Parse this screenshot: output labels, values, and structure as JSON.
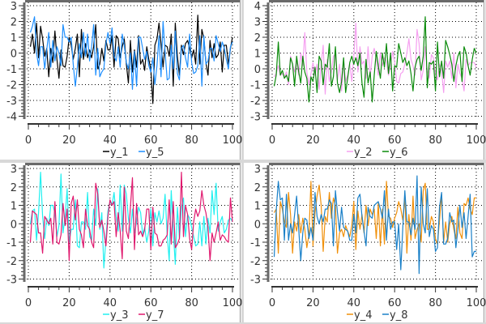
{
  "chart_data": [
    {
      "type": "line",
      "xlim": [
        0,
        100
      ],
      "ylim": [
        -4,
        3
      ],
      "xticks": [
        "0",
        "20",
        "40",
        "60",
        "80",
        "100"
      ],
      "yticks": [
        "3",
        "2",
        "1",
        "0",
        "-1",
        "-2",
        "-3",
        "-4"
      ],
      "grid": true,
      "legend_position": "bottom-center",
      "series": [
        {
          "name": "y_1",
          "color": "#000000",
          "values": [
            0.4,
            1.2,
            0.0,
            1.9,
            -0.3,
            1.7,
            0.9,
            -0.2,
            0.3,
            -1.5,
            0.3,
            -0.6,
            1.4,
            -0.4,
            -1.6,
            0.2,
            -0.8,
            -0.9,
            -0.2,
            1.0,
            0.5,
            -0.4,
            0.3,
            1.2,
            -1.5,
            1.5,
            -0.4,
            0.6,
            -0.3,
            0.2,
            -0.3,
            0.4,
            1.8,
            -1.0,
            -0.7,
            0.3,
            -0.5,
            0.8,
            0.2,
            0.2,
            1.1,
            -0.9,
            1.1,
            0.9,
            -0.3,
            0.4,
            0.9,
            -0.7,
            -1.9,
            0.8,
            -1.2,
            0.2,
            -0.9,
            1.1,
            -0.7,
            -0.4,
            -1.1,
            0.4,
            -0.4,
            -1.0,
            -3.2,
            0.5,
            0.9,
            1.9,
            0.6,
            -0.9,
            0.5,
            0.4,
            -0.2,
            1.2,
            -2.1,
            1.9,
            -0.2,
            -1.4,
            0.5,
            -0.1,
            0.6,
            0.8,
            0.3,
            -0.3,
            0.2,
            -0.7,
            2.4,
            -0.7,
            1.5,
            0.9,
            -0.6,
            -1.4,
            0.8,
            -0.3,
            0.6,
            -0.3,
            -0.1,
            0.7,
            -1.2,
            0.5,
            0.5,
            -0.7,
            0.3,
            1.0
          ]
        },
        {
          "name": "y_5",
          "color": "#1e8fff",
          "values": [
            1.3,
            1.7,
            2.3,
            0.0,
            -0.8,
            0.4,
            0.4,
            -1.0,
            0.2,
            1.3,
            -0.9,
            0.8,
            -0.5,
            0.4,
            0.0,
            -0.8,
            1.8,
            1.0,
            1.0,
            0.7,
            1.0,
            -0.7,
            -2.1,
            -0.9,
            0.6,
            -0.3,
            1.3,
            -0.2,
            1.2,
            -0.5,
            0.4,
            1.8,
            -1.4,
            0.3,
            -1.5,
            -1.2,
            -1.0,
            0.6,
            1.3,
            0.6,
            1.6,
            -0.2,
            -0.5,
            0.4,
            -0.9,
            1.2,
            0.5,
            -0.6,
            -1.0,
            0.0,
            -2.3,
            0.1,
            -2.1,
            1.0,
            1.0,
            0.3,
            -0.4,
            0.1,
            -0.8,
            -1.2,
            -0.3,
            -2.0,
            -0.8,
            1.1,
            -1.5,
            2.0,
            0.1,
            -1.7,
            -1.6,
            0.5,
            -1.0,
            1.4,
            -1.3,
            -1.7,
            0.3,
            0.5,
            -0.3,
            -0.9,
            1.2,
            -0.6,
            -1.3,
            -1.2,
            -0.8,
            1.1,
            -2.1,
            1.1,
            -0.7,
            -0.5,
            0.3,
            0.3,
            -0.5,
            1.1,
            0.6,
            0.1,
            0.7,
            0.3,
            -0.4,
            -1.0,
            0.4,
            0.7
          ]
        }
      ]
    },
    {
      "type": "line",
      "xlim": [
        0,
        100
      ],
      "ylim": [
        -3,
        4
      ],
      "xticks": [
        "0",
        "20",
        "40",
        "60",
        "80",
        "100"
      ],
      "yticks": [
        "4",
        "3",
        "2",
        "1",
        "0",
        "-1",
        "-2",
        "-3"
      ],
      "grid": true,
      "legend_position": "bottom-center",
      "series": [
        {
          "name": "y_2",
          "color": "#f5a0f0",
          "values": [
            -0.5,
            -0.3,
            0.2,
            -0.4,
            -0.3,
            -0.5,
            -0.2,
            -1.0,
            0.8,
            0.3,
            -0.2,
            0.5,
            -0.4,
            1.0,
            0.2,
            2.3,
            -0.2,
            -1.0,
            -0.3,
            0.4,
            -0.4,
            0.3,
            -1.3,
            0.3,
            1.5,
            -1.6,
            0.6,
            -0.8,
            -0.2,
            0.8,
            0.9,
            -0.7,
            0.3,
            -1.4,
            0.5,
            -0.8,
            -0.4,
            0.3,
            -0.8,
            0.8,
            2.9,
            -0.2,
            1.4,
            0.3,
            0.5,
            -0.6,
            1.4,
            -0.5,
            0.8,
            1.3,
            0.6,
            -0.4,
            1.0,
            0.2,
            0.7,
            0.5,
            -0.4,
            0.2,
            1.1,
            0.4,
            -0.8,
            -0.9,
            -0.3,
            -0.2,
            0.3,
            1.0,
            1.9,
            0.6,
            0.2,
            -0.4,
            2.5,
            1.6,
            -0.7,
            -0.1,
            1.4,
            -0.1,
            -0.6,
            0.9,
            0.7,
            -0.3,
            -0.7,
            0.3,
            -0.1,
            -1.5,
            0.5,
            0.1,
            0.5,
            -0.6,
            1.0,
            -1.2,
            0.3,
            -0.3,
            -0.6,
            -1.4,
            0.6,
            0.2,
            0.4,
            0.4,
            0.4,
            0.1
          ]
        },
        {
          "name": "y_6",
          "color": "#0a8a0a",
          "values": [
            -1.1,
            -0.4,
            1.7,
            -0.4,
            -0.1,
            -0.6,
            -0.4,
            -0.8,
            0.7,
            0.3,
            -1.1,
            0.8,
            -0.2,
            -0.9,
            0.8,
            -0.2,
            -0.6,
            -2.1,
            -0.5,
            -0.8,
            0.1,
            -1.5,
            0.8,
            0.5,
            -1.0,
            0.3,
            0.1,
            1.6,
            -1.1,
            -0.5,
            1.4,
            -0.9,
            -1.5,
            -0.8,
            0.7,
            -1.5,
            -0.6,
            0.4,
            0.8,
            0.3,
            0.7,
            0.2,
            1.0,
            -0.9,
            -1.8,
            0.6,
            -0.9,
            -0.2,
            -2.1,
            -0.4,
            1.1,
            0.2,
            -0.6,
            1.0,
            0.1,
            1.6,
            -0.3,
            1.0,
            -1.4,
            0.2,
            0.1,
            1.6,
            1.0,
            0.4,
            0.7,
            0.2,
            0.5,
            -0.3,
            -1.4,
            0.1,
            0.6,
            0.8,
            -0.1,
            0.8,
            3.3,
            -1.2,
            0.4,
            0.3,
            0.5,
            -1.4,
            1.7,
            -0.5,
            0.5,
            -0.6,
            1.8,
            1.4,
            0.9,
            0.3,
            -0.8,
            0.2,
            0.8,
            1.1,
            -0.8,
            1.4,
            1.0,
            0.2,
            -0.4,
            0.6,
            1.3,
            1.0
          ]
        }
      ]
    },
    {
      "type": "line",
      "xlim": [
        0,
        100
      ],
      "ylim": [
        -3,
        3
      ],
      "xticks": [
        "0",
        "20",
        "40",
        "60",
        "80",
        "100"
      ],
      "yticks": [
        "3",
        "2",
        "1",
        "0",
        "-1",
        "-2",
        "-3"
      ],
      "grid": true,
      "legend_position": "bottom-center",
      "series": [
        {
          "name": "y_3",
          "color": "#22f0f0",
          "values": [
            0.0,
            0.7,
            0.8,
            -0.9,
            0.6,
            2.8,
            0.4,
            -0.8,
            0.3,
            -0.1,
            1.0,
            1.0,
            0.6,
            -0.7,
            -0.1,
            2.7,
            -0.5,
            0.4,
            1.9,
            -1.0,
            -0.3,
            -0.3,
            1.3,
            -1.2,
            -1.3,
            0.1,
            0.1,
            -0.3,
            1.7,
            -0.7,
            -0.9,
            0.8,
            -0.1,
            1.9,
            -0.3,
            0.6,
            -2.4,
            -0.8,
            0.7,
            1.2,
            1.0,
            1.7,
            0.4,
            -0.4,
            2.1,
            -0.4,
            2.1,
            1.6,
            0.3,
            -0.5,
            0.8,
            -0.5,
            0.1,
            0.9,
            0.6,
            -0.6,
            -0.2,
            -1.0,
            -0.4,
            0.8,
            -1.2,
            0.6,
            0.1,
            0.7,
            0.0,
            0.3,
            1.6,
            -0.6,
            -2.0,
            1.8,
            -0.4,
            -2.2,
            0.9,
            -0.8,
            0.9,
            1.4,
            -0.7,
            0.5,
            0.3,
            -0.2,
            -0.7,
            -1.2,
            -1.1,
            0.1,
            -1.2,
            0.4,
            -1.1,
            0.3,
            -0.5,
            1.8,
            0.5,
            2.2,
            -0.4,
            0.1,
            0.4,
            -0.5,
            -0.3,
            0.2,
            0.3,
            0.1
          ]
        },
        {
          "name": "y_7",
          "color": "#e0186e",
          "values": [
            -1.0,
            0.7,
            0.6,
            0.5,
            -0.5,
            -0.5,
            -1.6,
            0.4,
            0.2,
            0.0,
            0.3,
            -1.1,
            1.2,
            -1.0,
            -1.1,
            -0.6,
            1.1,
            -0.1,
            0.8,
            -2.0,
            1.1,
            1.5,
            0.2,
            1.3,
            -0.3,
            -0.6,
            -1.3,
            0.8,
            -0.1,
            -0.3,
            -1.0,
            -1.3,
            2.2,
            1.6,
            -0.2,
            0.2,
            -0.4,
            -1.2,
            0.4,
            1.3,
            1.0,
            1.2,
            -0.7,
            0.6,
            -0.4,
            -1.9,
            2.0,
            -0.4,
            -0.8,
            0.9,
            2.5,
            -1.4,
            1.1,
            -0.6,
            -0.4,
            -0.7,
            -0.3,
            0.8,
            0.8,
            -1.4,
            0.9,
            -0.5,
            -0.6,
            -1.2,
            -1.2,
            -0.9,
            -0.8,
            -0.6,
            1.3,
            -1.1,
            1.2,
            -1.3,
            -1.1,
            -0.8,
            2.8,
            -0.7,
            1.0,
            0.5,
            -0.8,
            -1.4,
            0.1,
            0.8,
            0.4,
            0.7,
            1.8,
            1.0,
            0.6,
            -0.2,
            -2.0,
            -0.5,
            -1.0,
            -0.5,
            0.1,
            -0.9,
            -0.6,
            -0.7,
            -0.9,
            -1.0,
            1.4,
            0.1
          ]
        }
      ]
    },
    {
      "type": "line",
      "xlim": [
        0,
        100
      ],
      "ylim": [
        -3,
        3
      ],
      "xticks": [
        "0",
        "20",
        "40",
        "60",
        "80",
        "100"
      ],
      "yticks": [
        "3",
        "2",
        "1",
        "0",
        "-1",
        "-2",
        "-3"
      ],
      "grid": true,
      "legend_position": "bottom-center",
      "series": [
        {
          "name": "y_4",
          "color": "#f0900a",
          "values": [
            0.6,
            0.8,
            -1.6,
            1.2,
            0.8,
            0.1,
            -0.2,
            1.7,
            0.5,
            -1.6,
            0.1,
            -0.4,
            0.5,
            -0.5,
            0.3,
            -0.3,
            -1.3,
            -0.6,
            2.3,
            -1.2,
            0.6,
            1.5,
            2.1,
            1.0,
            -1.5,
            0.4,
            0.1,
            1.7,
            0.3,
            1.4,
            1.0,
            -1.6,
            -0.5,
            -0.3,
            -0.7,
            -0.1,
            -0.4,
            -0.7,
            -0.1,
            1.2,
            -1.4,
            0.7,
            -0.3,
            0.5,
            -0.5,
            1.0,
            -0.1,
            0.8,
            0.5,
            0.8,
            -0.8,
            1.1,
            -1.2,
            0.8,
            -1.1,
            2.3,
            0.4,
            0.3,
            -0.2,
            0.3,
            0.6,
            1.2,
            0.8,
            0.2,
            1.5,
            -1.6,
            0.5,
            -0.9,
            1.5,
            -0.8,
            -0.3,
            0.0,
            -1.0,
            1.8,
            2.2,
            -0.3,
            -0.3,
            0.4,
            0.1,
            -0.8,
            -1.1,
            0.2,
            1.6,
            -1.0,
            0.1,
            -1.0,
            0.0,
            0.4,
            -0.3,
            -0.8,
            0.9,
            -0.5,
            -0.8,
            1.1,
            1.0,
            1.4,
            0.8,
            0.5,
            1.4,
            1.4
          ]
        },
        {
          "name": "y_8",
          "color": "#1a80c8",
          "values": [
            -1.8,
            0.7,
            2.3,
            1.3,
            1.4,
            -0.9,
            1.6,
            -0.9,
            0.0,
            -0.5,
            0.5,
            1.5,
            -0.3,
            -2.0,
            -0.5,
            0.3,
            0.2,
            -0.8,
            -0.2,
            -0.9,
            1.7,
            0.4,
            0.0,
            0.5,
            0.1,
            0.8,
            0.8,
            1.3,
            1.1,
            -1.2,
            1.8,
            0.6,
            -0.4,
            0.9,
            -0.2,
            -0.3,
            -0.4,
            -0.9,
            -0.9,
            0.5,
            -0.5,
            1.4,
            1.6,
            0.4,
            -0.4,
            -1.2,
            0.9,
            0.4,
            0.3,
            1.0,
            1.1,
            1.2,
            0.8,
            0.3,
            1.8,
            -0.9,
            0.8,
            -0.3,
            0.1,
            0.1,
            -1.4,
            0.0,
            -2.5,
            -0.2,
            1.8,
            0.1,
            0.1,
            -0.6,
            0.3,
            -0.3,
            2.6,
            -2.7,
            2.0,
            0.0,
            -0.5,
            1.9,
            -0.7,
            -0.1,
            -0.3,
            -1.5,
            -1.3,
            0.9,
            1.7,
            -1.1,
            -1.1,
            -0.8,
            0.6,
            0.1,
            0.2,
            -1.3,
            -0.3,
            1.0,
            -0.2,
            0.6,
            -0.8,
            0.4,
            1.6,
            -1.8,
            -1.5,
            -1.5
          ]
        }
      ]
    }
  ]
}
